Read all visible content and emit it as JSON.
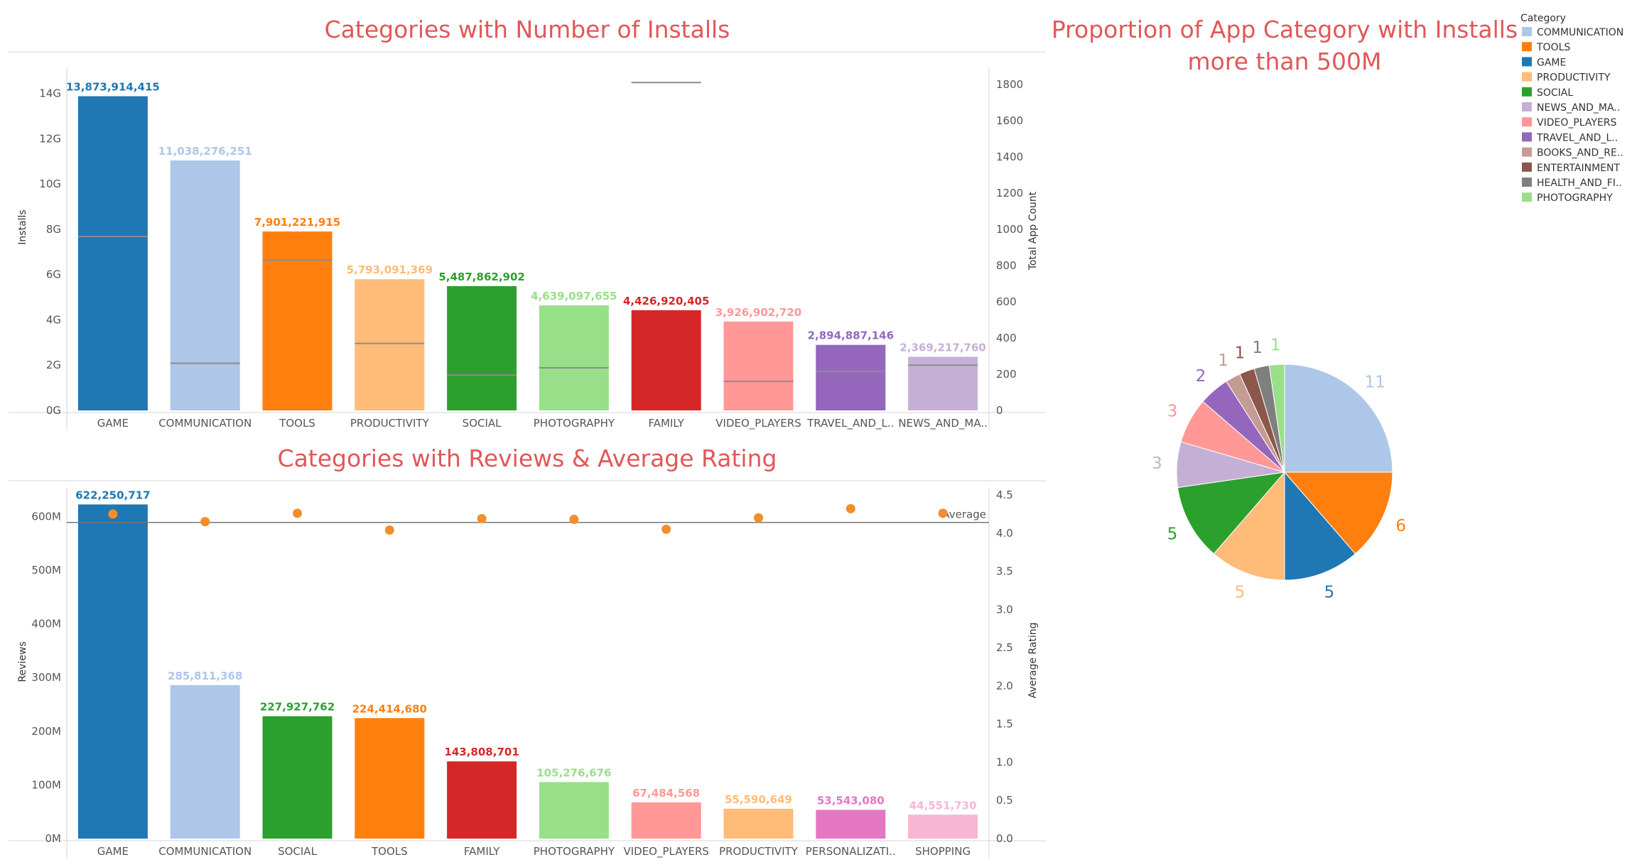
{
  "chart_data": [
    {
      "type": "bar",
      "title": "Categories with Number of Installs",
      "ylabel": "Installs",
      "y2label": "Total App Count",
      "ylim": [
        0,
        14800000000
      ],
      "y2lim": [
        0,
        1850
      ],
      "yticks": [
        {
          "v": 0,
          "label": "0G"
        },
        {
          "v": 2000000000,
          "label": "2G"
        },
        {
          "v": 4000000000,
          "label": "4G"
        },
        {
          "v": 6000000000,
          "label": "6G"
        },
        {
          "v": 8000000000,
          "label": "8G"
        },
        {
          "v": 10000000000,
          "label": "10G"
        },
        {
          "v": 12000000000,
          "label": "12G"
        },
        {
          "v": 14000000000,
          "label": "14G"
        }
      ],
      "y2ticks": [
        {
          "v": 0,
          "label": "0"
        },
        {
          "v": 200,
          "label": "200"
        },
        {
          "v": 400,
          "label": "400"
        },
        {
          "v": 600,
          "label": "600"
        },
        {
          "v": 800,
          "label": "800"
        },
        {
          "v": 1000,
          "label": "1000"
        },
        {
          "v": 1200,
          "label": "1200"
        },
        {
          "v": 1400,
          "label": "1400"
        },
        {
          "v": 1600,
          "label": "1600"
        },
        {
          "v": 1800,
          "label": "1800"
        }
      ],
      "categories": [
        "GAME",
        "COMMUNICATION",
        "TOOLS",
        "PRODUCTIVITY",
        "SOCIAL",
        "PHOTOGRAPHY",
        "FAMILY",
        "VIDEO_PLAYERS",
        "TRAVEL_AND_L..",
        "NEWS_AND_MA.."
      ],
      "values": [
        13873914415,
        11038276251,
        7901221915,
        5793091369,
        5487862902,
        4639097655,
        4426920405,
        3926902720,
        2894887146,
        2369217760
      ],
      "labels": [
        "13,873,914,415",
        "11,038,276,251",
        "7,901,221,915",
        "5,793,091,369",
        "5,487,862,902",
        "4,639,097,655",
        "4,426,920,405",
        "3,926,902,720",
        "2,894,887,146",
        "2,369,217,760"
      ],
      "app_count": [
        960,
        260,
        830,
        370,
        195,
        235,
        1810,
        160,
        215,
        250
      ],
      "colors": [
        "#1f77b4",
        "#aec7e8",
        "#ff7f0e",
        "#ffbb78",
        "#2ca02c",
        "#98df8a",
        "#d62728",
        "#ff9896",
        "#9467bd",
        "#c5b0d5"
      ]
    },
    {
      "type": "bar",
      "title": "Categories with Reviews & Average Rating",
      "ylabel": "Reviews",
      "y2label": "Average Rating",
      "ylim": [
        0,
        640000000
      ],
      "y2lim": [
        0,
        4.5
      ],
      "yticks": [
        {
          "v": 0,
          "label": "0M"
        },
        {
          "v": 100000000,
          "label": "100M"
        },
        {
          "v": 200000000,
          "label": "200M"
        },
        {
          "v": 300000000,
          "label": "300M"
        },
        {
          "v": 400000000,
          "label": "400M"
        },
        {
          "v": 500000000,
          "label": "500M"
        },
        {
          "v": 600000000,
          "label": "600M"
        }
      ],
      "y2ticks": [
        {
          "v": 0,
          "label": "0.0"
        },
        {
          "v": 0.5,
          "label": "0.5"
        },
        {
          "v": 1,
          "label": "1.0"
        },
        {
          "v": 1.5,
          "label": "1.5"
        },
        {
          "v": 2,
          "label": "2.0"
        },
        {
          "v": 2.5,
          "label": "2.5"
        },
        {
          "v": 3,
          "label": "3.0"
        },
        {
          "v": 3.5,
          "label": "3.5"
        },
        {
          "v": 4,
          "label": "4.0"
        },
        {
          "v": 4.5,
          "label": "4.5"
        }
      ],
      "categories": [
        "GAME",
        "COMMUNICATION",
        "SOCIAL",
        "TOOLS",
        "FAMILY",
        "PHOTOGRAPHY",
        "VIDEO_PLAYERS",
        "PRODUCTIVITY",
        "PERSONALIZATI..",
        "SHOPPING"
      ],
      "values": [
        622250717,
        285811368,
        227927762,
        224414680,
        143808701,
        105276676,
        67484568,
        55590649,
        53543080,
        44551730
      ],
      "labels": [
        "622,250,717",
        "285,811,368",
        "227,927,762",
        "224,414,680",
        "143,808,701",
        "105,276,676",
        "67,484,568",
        "55,590,649",
        "53,543,080",
        "44,551,730"
      ],
      "avg_rating": [
        4.25,
        4.15,
        4.26,
        4.04,
        4.19,
        4.18,
        4.05,
        4.2,
        4.32,
        4.26
      ],
      "average_line": 4.14,
      "average_label": "Average",
      "colors": [
        "#1f77b4",
        "#aec7e8",
        "#2ca02c",
        "#ff7f0e",
        "#d62728",
        "#98df8a",
        "#ff9896",
        "#ffbb78",
        "#e377c2",
        "#f7b6d2"
      ],
      "dot_color": "#f28e2b"
    },
    {
      "type": "pie",
      "title": [
        "Proportion of App Category with Installs",
        "more than 500M"
      ],
      "legend_title": "Category",
      "legend_position": "top-right",
      "legend": [
        {
          "name": "COMMUNICATION",
          "color": "#aec7e8"
        },
        {
          "name": "TOOLS",
          "color": "#ff7f0e"
        },
        {
          "name": "GAME",
          "color": "#1f77b4"
        },
        {
          "name": "PRODUCTIVITY",
          "color": "#ffbb78"
        },
        {
          "name": "SOCIAL",
          "color": "#2ca02c"
        },
        {
          "name": "NEWS_AND_MA..",
          "color": "#c5b0d5"
        },
        {
          "name": "VIDEO_PLAYERS",
          "color": "#ff9896"
        },
        {
          "name": "TRAVEL_AND_L..",
          "color": "#9467bd"
        },
        {
          "name": "BOOKS_AND_RE..",
          "color": "#c49c94"
        },
        {
          "name": "ENTERTAINMENT",
          "color": "#8c564b"
        },
        {
          "name": "HEALTH_AND_FI..",
          "color": "#7f7f7f"
        },
        {
          "name": "PHOTOGRAPHY",
          "color": "#98df8a"
        }
      ],
      "slices": [
        {
          "name": "COMMUNICATION",
          "value": 11,
          "color": "#aec7e8"
        },
        {
          "name": "TOOLS",
          "value": 6,
          "color": "#ff7f0e"
        },
        {
          "name": "GAME",
          "value": 5,
          "color": "#1f77b4"
        },
        {
          "name": "PRODUCTIVITY",
          "value": 5,
          "color": "#ffbb78"
        },
        {
          "name": "SOCIAL",
          "value": 5,
          "color": "#2ca02c"
        },
        {
          "name": "NEWS_AND_MA..",
          "value": 3,
          "color": "#c5b0d5"
        },
        {
          "name": "VIDEO_PLAYERS",
          "value": 3,
          "color": "#ff9896"
        },
        {
          "name": "TRAVEL_AND_L..",
          "value": 2,
          "color": "#9467bd"
        },
        {
          "name": "BOOKS_AND_RE..",
          "value": 1,
          "color": "#c49c94"
        },
        {
          "name": "ENTERTAINMENT",
          "value": 1,
          "color": "#8c564b"
        },
        {
          "name": "HEALTH_AND_FI..",
          "value": 1,
          "color": "#7f7f7f"
        },
        {
          "name": "PHOTOGRAPHY",
          "value": 1,
          "color": "#98df8a"
        }
      ]
    }
  ]
}
